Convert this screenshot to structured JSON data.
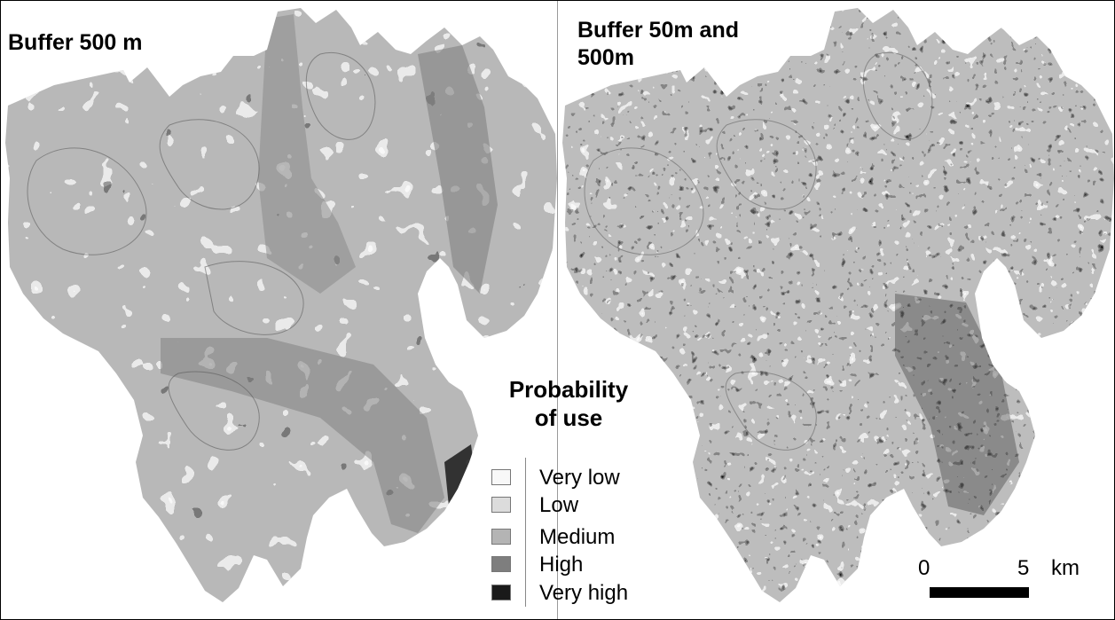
{
  "panels": {
    "left_title": "Buffer 500 m",
    "right_title_line1": "Buffer 50m and",
    "right_title_line2": "500m"
  },
  "legend": {
    "title_line1": "Probability",
    "title_line2": "of use",
    "items": [
      {
        "label": "Very low",
        "color": "#f8f8f8"
      },
      {
        "label": "Low",
        "color": "#dcdcdc"
      },
      {
        "label": "Medium",
        "color": "#b4b4b4"
      },
      {
        "label": "High",
        "color": "#7e7e7e"
      },
      {
        "label": "Very high",
        "color": "#1a1a1a"
      }
    ]
  },
  "scale": {
    "start_label": "0",
    "end_label": "5",
    "unit": "km"
  }
}
